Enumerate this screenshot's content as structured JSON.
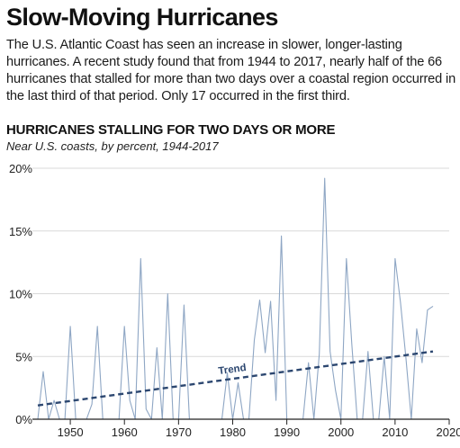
{
  "headline": "Slow-Moving Hurricanes",
  "intro": "The U.S. Atlantic Coast has seen an increase in slower, longer-lasting hurricanes. A recent study found that from 1944 to 2017, nearly half of the 66 hurricanes that stalled for more than two days over a coastal region occurred in the last third of that period. Only 17 occurred in the first third.",
  "colors": {
    "series": "#8ea6c4",
    "trend": "#2c4770",
    "grid": "#d9d9d9",
    "axis": "#222222"
  },
  "chart_data": {
    "type": "line",
    "title": "HURRICANES STALLING FOR TWO DAYS OR MORE",
    "subtitle": "Near U.S. coasts, by percent, 1944-2017",
    "xlabel": "",
    "ylabel": "",
    "xlim": [
      1943,
      2020
    ],
    "ylim": [
      0,
      20
    ],
    "x_ticks": [
      1950,
      1960,
      1970,
      1980,
      1990,
      2000,
      2010,
      2020
    ],
    "y_ticks": [
      0,
      5,
      10,
      15,
      20
    ],
    "y_tick_labels": [
      "0%",
      "5%",
      "10%",
      "15%",
      "20%"
    ],
    "grid": "horizontal",
    "series": [
      {
        "x": [
          1944,
          1945,
          1946,
          1947,
          1948,
          1949,
          1950,
          1951,
          1952,
          1953,
          1954,
          1955,
          1956,
          1957,
          1958,
          1959,
          1960,
          1961,
          1962,
          1963,
          1964,
          1965,
          1966,
          1967,
          1968,
          1969,
          1970,
          1971,
          1972,
          1973,
          1974,
          1975,
          1976,
          1977,
          1978,
          1979,
          1980,
          1981,
          1982,
          1983,
          1984,
          1985,
          1986,
          1987,
          1988,
          1989,
          1990,
          1991,
          1992,
          1993,
          1994,
          1995,
          1996,
          1997,
          1998,
          1999,
          2000,
          2001,
          2002,
          2003,
          2004,
          2005,
          2006,
          2007,
          2008,
          2009,
          2010,
          2011,
          2012,
          2013,
          2014,
          2015,
          2016,
          2017
        ],
        "values": [
          0,
          3.8,
          0,
          1.5,
          0,
          0,
          7.4,
          0,
          0,
          0,
          1.2,
          7.4,
          0,
          0,
          0,
          0,
          7.4,
          1.5,
          0,
          12.8,
          0.8,
          0,
          5.7,
          0,
          10,
          0,
          0,
          9.1,
          0,
          0,
          0,
          0,
          0,
          0,
          0,
          3.7,
          0,
          2.9,
          0,
          0,
          6.3,
          9.5,
          5.3,
          9.4,
          1.5,
          14.6,
          0,
          0,
          0,
          0,
          4.5,
          0,
          5.2,
          19.2,
          5.4,
          2.3,
          0,
          12.8,
          6,
          0,
          0,
          5.4,
          0,
          0,
          5,
          0,
          12.8,
          9.3,
          4.9,
          0,
          7.2,
          4.5,
          8.7,
          9
        ]
      },
      {
        "name": "Trend",
        "x": [
          1944,
          2017
        ],
        "values": [
          1.1,
          5.4
        ]
      }
    ]
  }
}
